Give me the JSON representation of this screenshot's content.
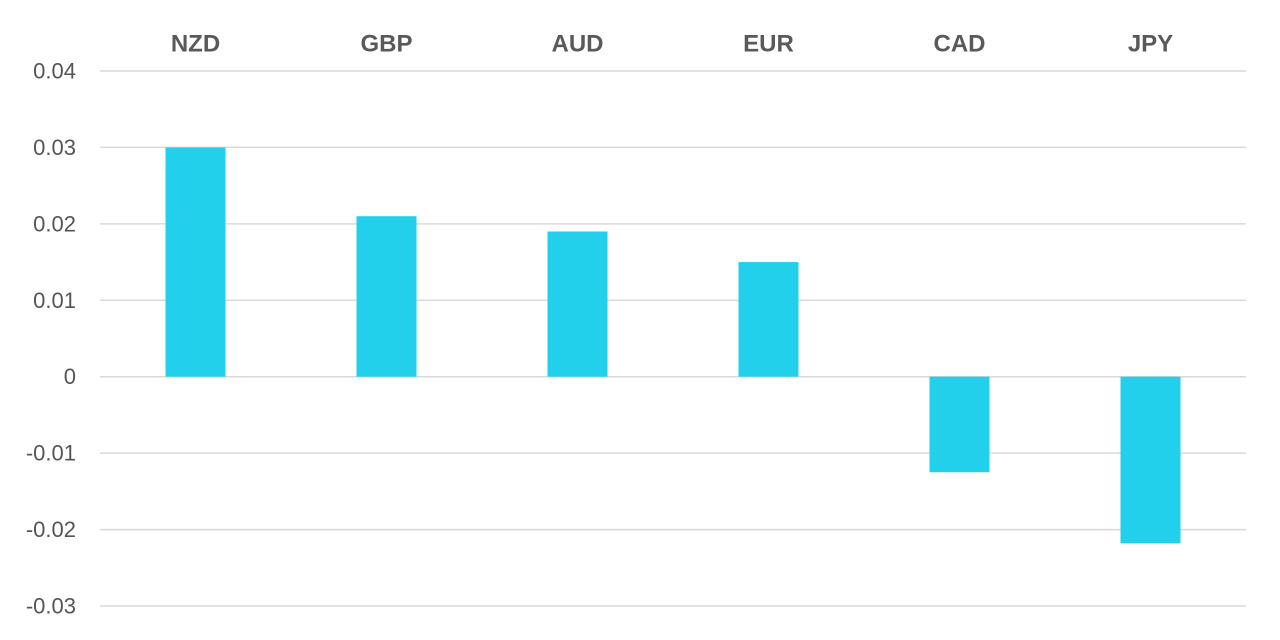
{
  "chart_data": {
    "type": "bar",
    "title": "",
    "xlabel": "",
    "ylabel": "",
    "categories": [
      "NZD",
      "GBP",
      "AUD",
      "EUR",
      "CAD",
      "JPY"
    ],
    "values": [
      0.03,
      0.021,
      0.019,
      0.015,
      -0.0125,
      -0.0218
    ],
    "ylim": [
      -0.03,
      0.04
    ],
    "yticks": [
      0.04,
      0.03,
      0.02,
      0.01,
      0,
      -0.01,
      -0.02,
      -0.03
    ],
    "ytick_labels": [
      "0.04",
      "0.03",
      "0.02",
      "0.01",
      "0",
      "-0.01",
      "-0.02",
      "-0.03"
    ],
    "category_axis_position": "top",
    "grid": true,
    "legend": "none",
    "colors": {
      "bar": "#22d0ec",
      "grid": "#d9d9d9",
      "tick_text": "#555555",
      "category_text": "#595959"
    }
  }
}
